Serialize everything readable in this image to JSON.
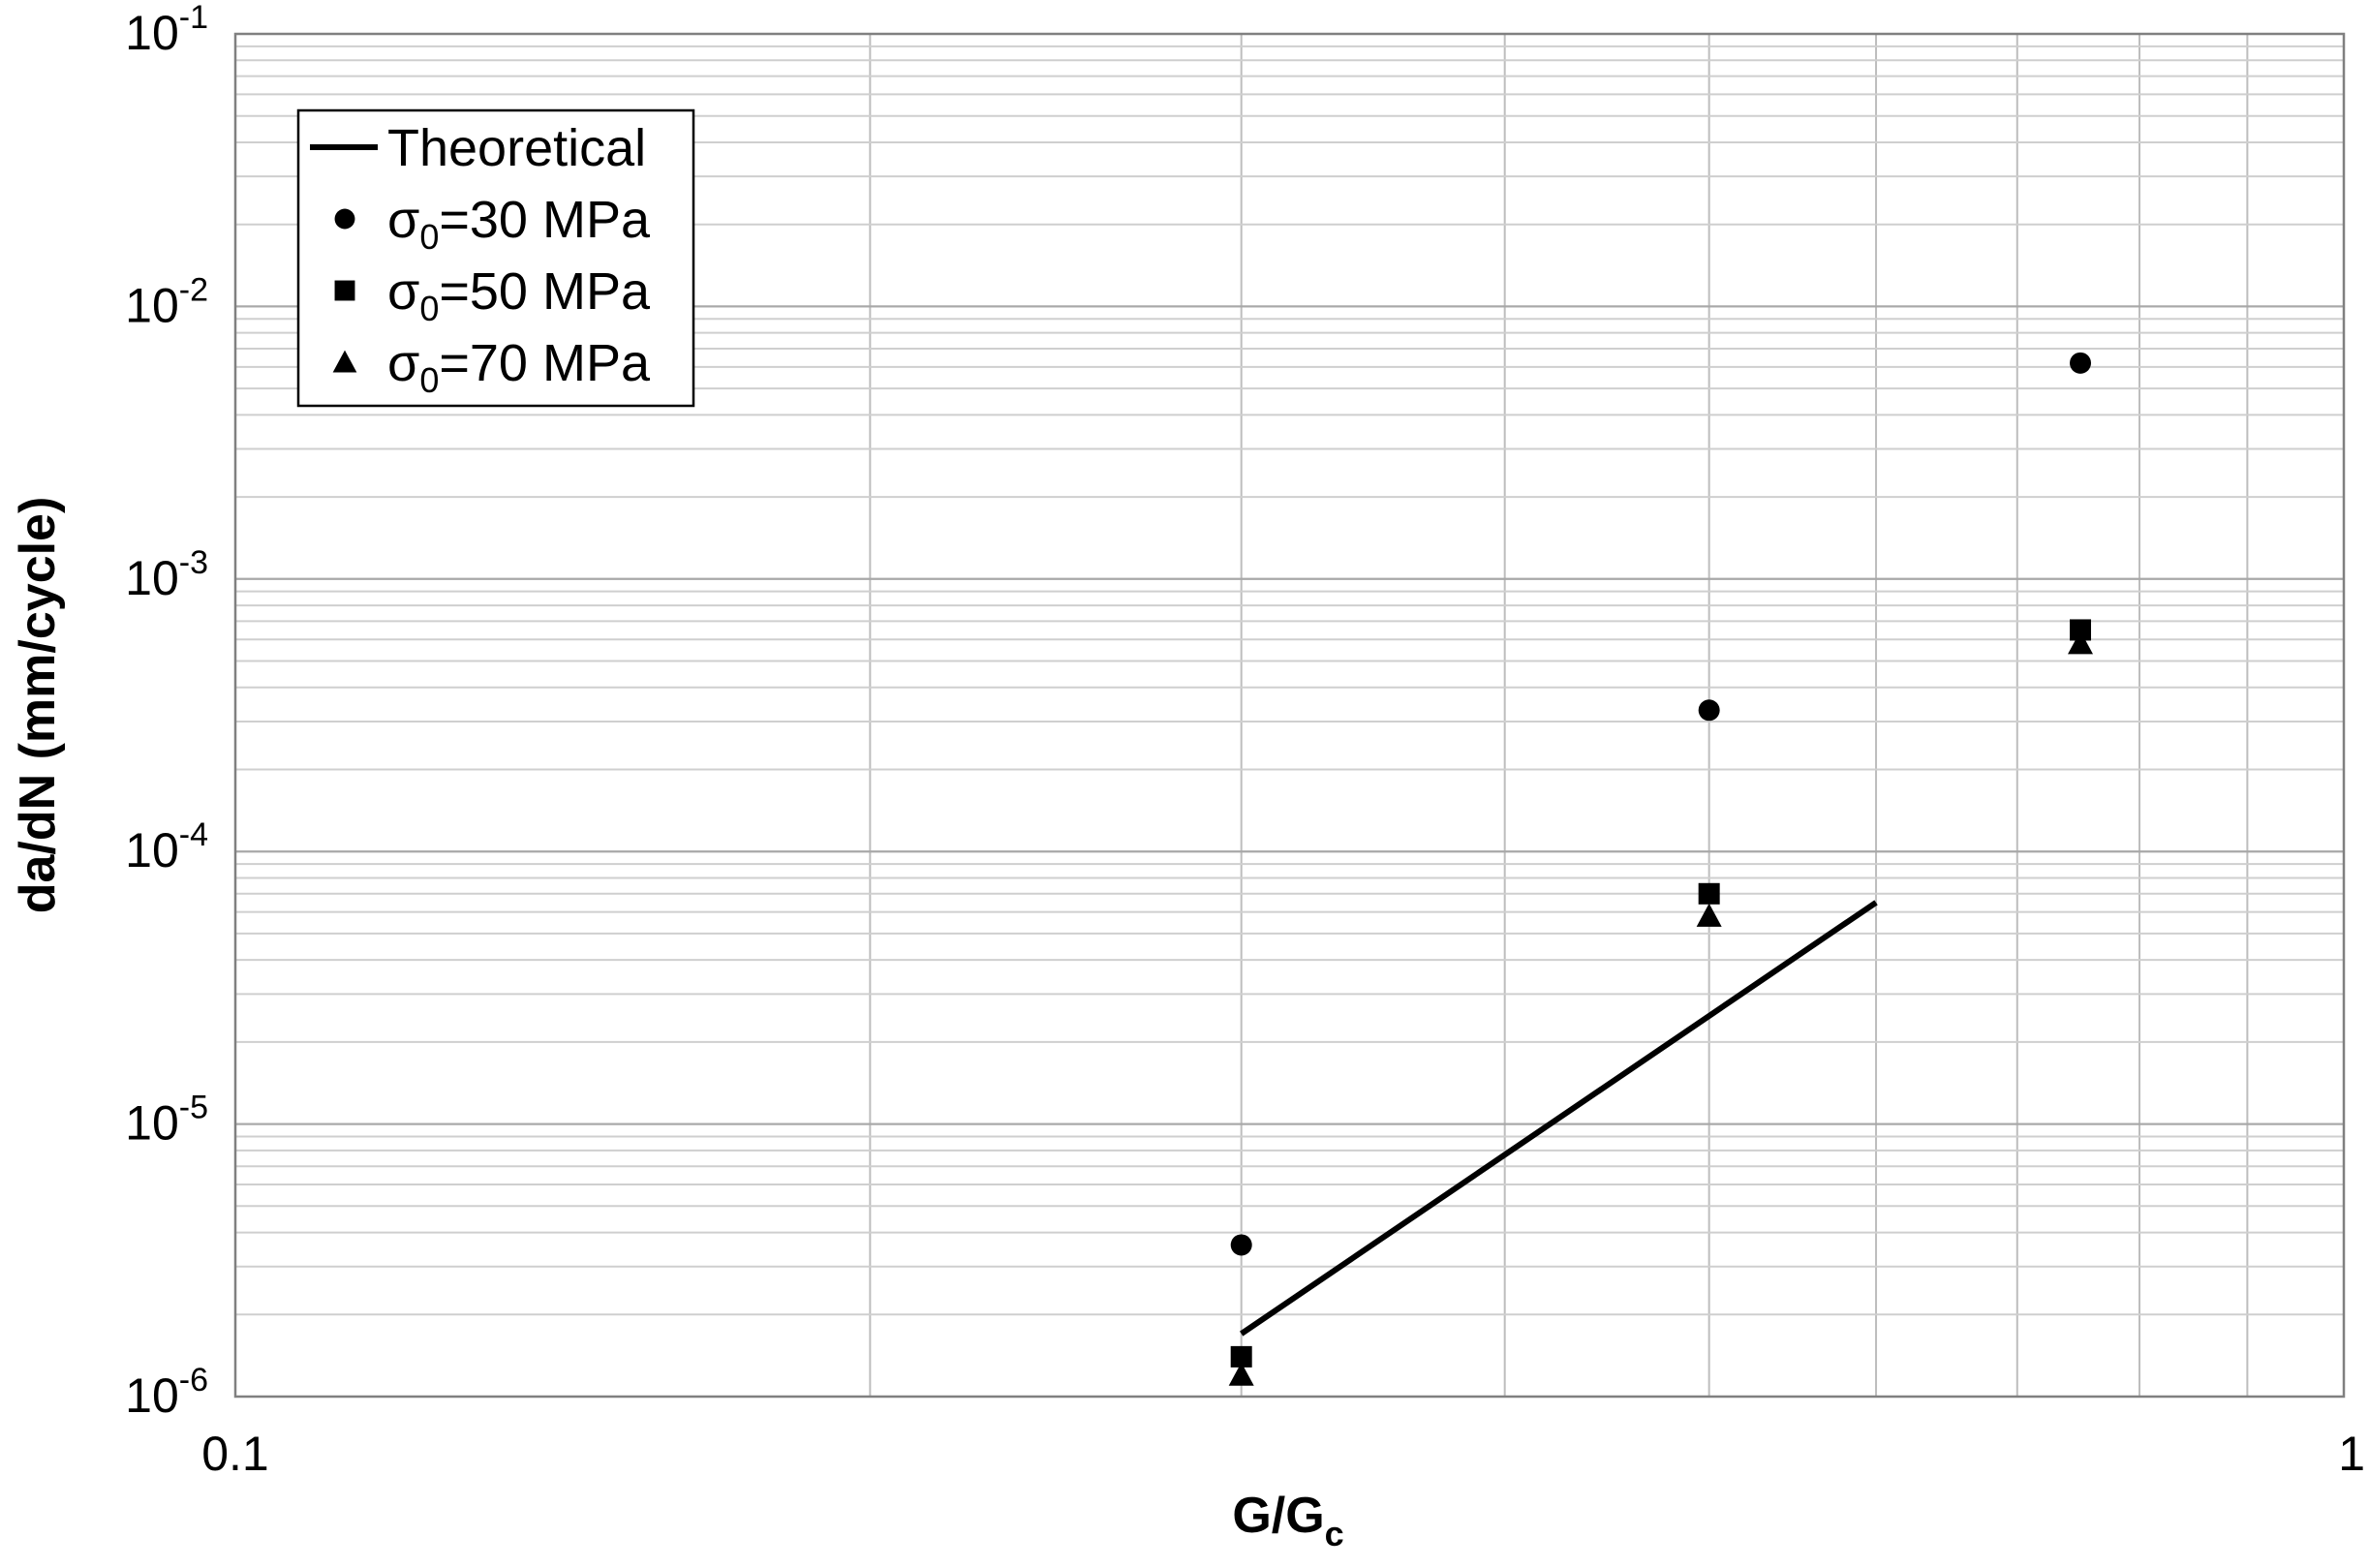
{
  "chart_data": {
    "type": "scatter",
    "title": "",
    "xlabel": {
      "main": "G/G",
      "sub": "c"
    },
    "ylabel": "da/dN (mm/cycle)",
    "xscale": "log",
    "yscale": "log",
    "xlim": [
      0.1,
      1
    ],
    "ylim": [
      1e-06,
      0.1
    ],
    "x_ticks": [
      {
        "value": 0.1,
        "label": "0.1"
      },
      {
        "value": 1,
        "label": "1"
      }
    ],
    "y_ticks": [
      {
        "value": 1e-06,
        "base": "10",
        "exp": "-6"
      },
      {
        "value": 1e-05,
        "base": "10",
        "exp": "-5"
      },
      {
        "value": 0.0001,
        "base": "10",
        "exp": "-4"
      },
      {
        "value": 0.001,
        "base": "10",
        "exp": "-3"
      },
      {
        "value": 0.01,
        "base": "10",
        "exp": "-2"
      },
      {
        "value": 0.1,
        "base": "10",
        "exp": "-1"
      }
    ],
    "grid": true,
    "legend_position": "top-left",
    "series": [
      {
        "name": "Theoretical",
        "kind": "line",
        "color": "#000000",
        "x": [
          0.3,
          0.6
        ],
        "y": [
          1.7e-06,
          6.5e-05
        ]
      },
      {
        "name": {
          "prefix": "σ",
          "sub": "0",
          "suffix": "=30 MPa"
        },
        "kind": "marker",
        "marker": "circle",
        "color": "#000000",
        "x": [
          0.3,
          0.5,
          0.75
        ],
        "y": [
          3.6e-06,
          0.00033,
          0.0062
        ]
      },
      {
        "name": {
          "prefix": "σ",
          "sub": "0",
          "suffix": "=50 MPa"
        },
        "kind": "marker",
        "marker": "square",
        "color": "#000000",
        "x": [
          0.3,
          0.5,
          0.75
        ],
        "y": [
          1.4e-06,
          7e-05,
          0.00065
        ]
      },
      {
        "name": {
          "prefix": "σ",
          "sub": "0",
          "suffix": "=70 MPa"
        },
        "kind": "marker",
        "marker": "triangle",
        "color": "#000000",
        "x": [
          0.3,
          0.5,
          0.75
        ],
        "y": [
          1.2e-06,
          5.8e-05,
          0.00058
        ]
      }
    ]
  }
}
